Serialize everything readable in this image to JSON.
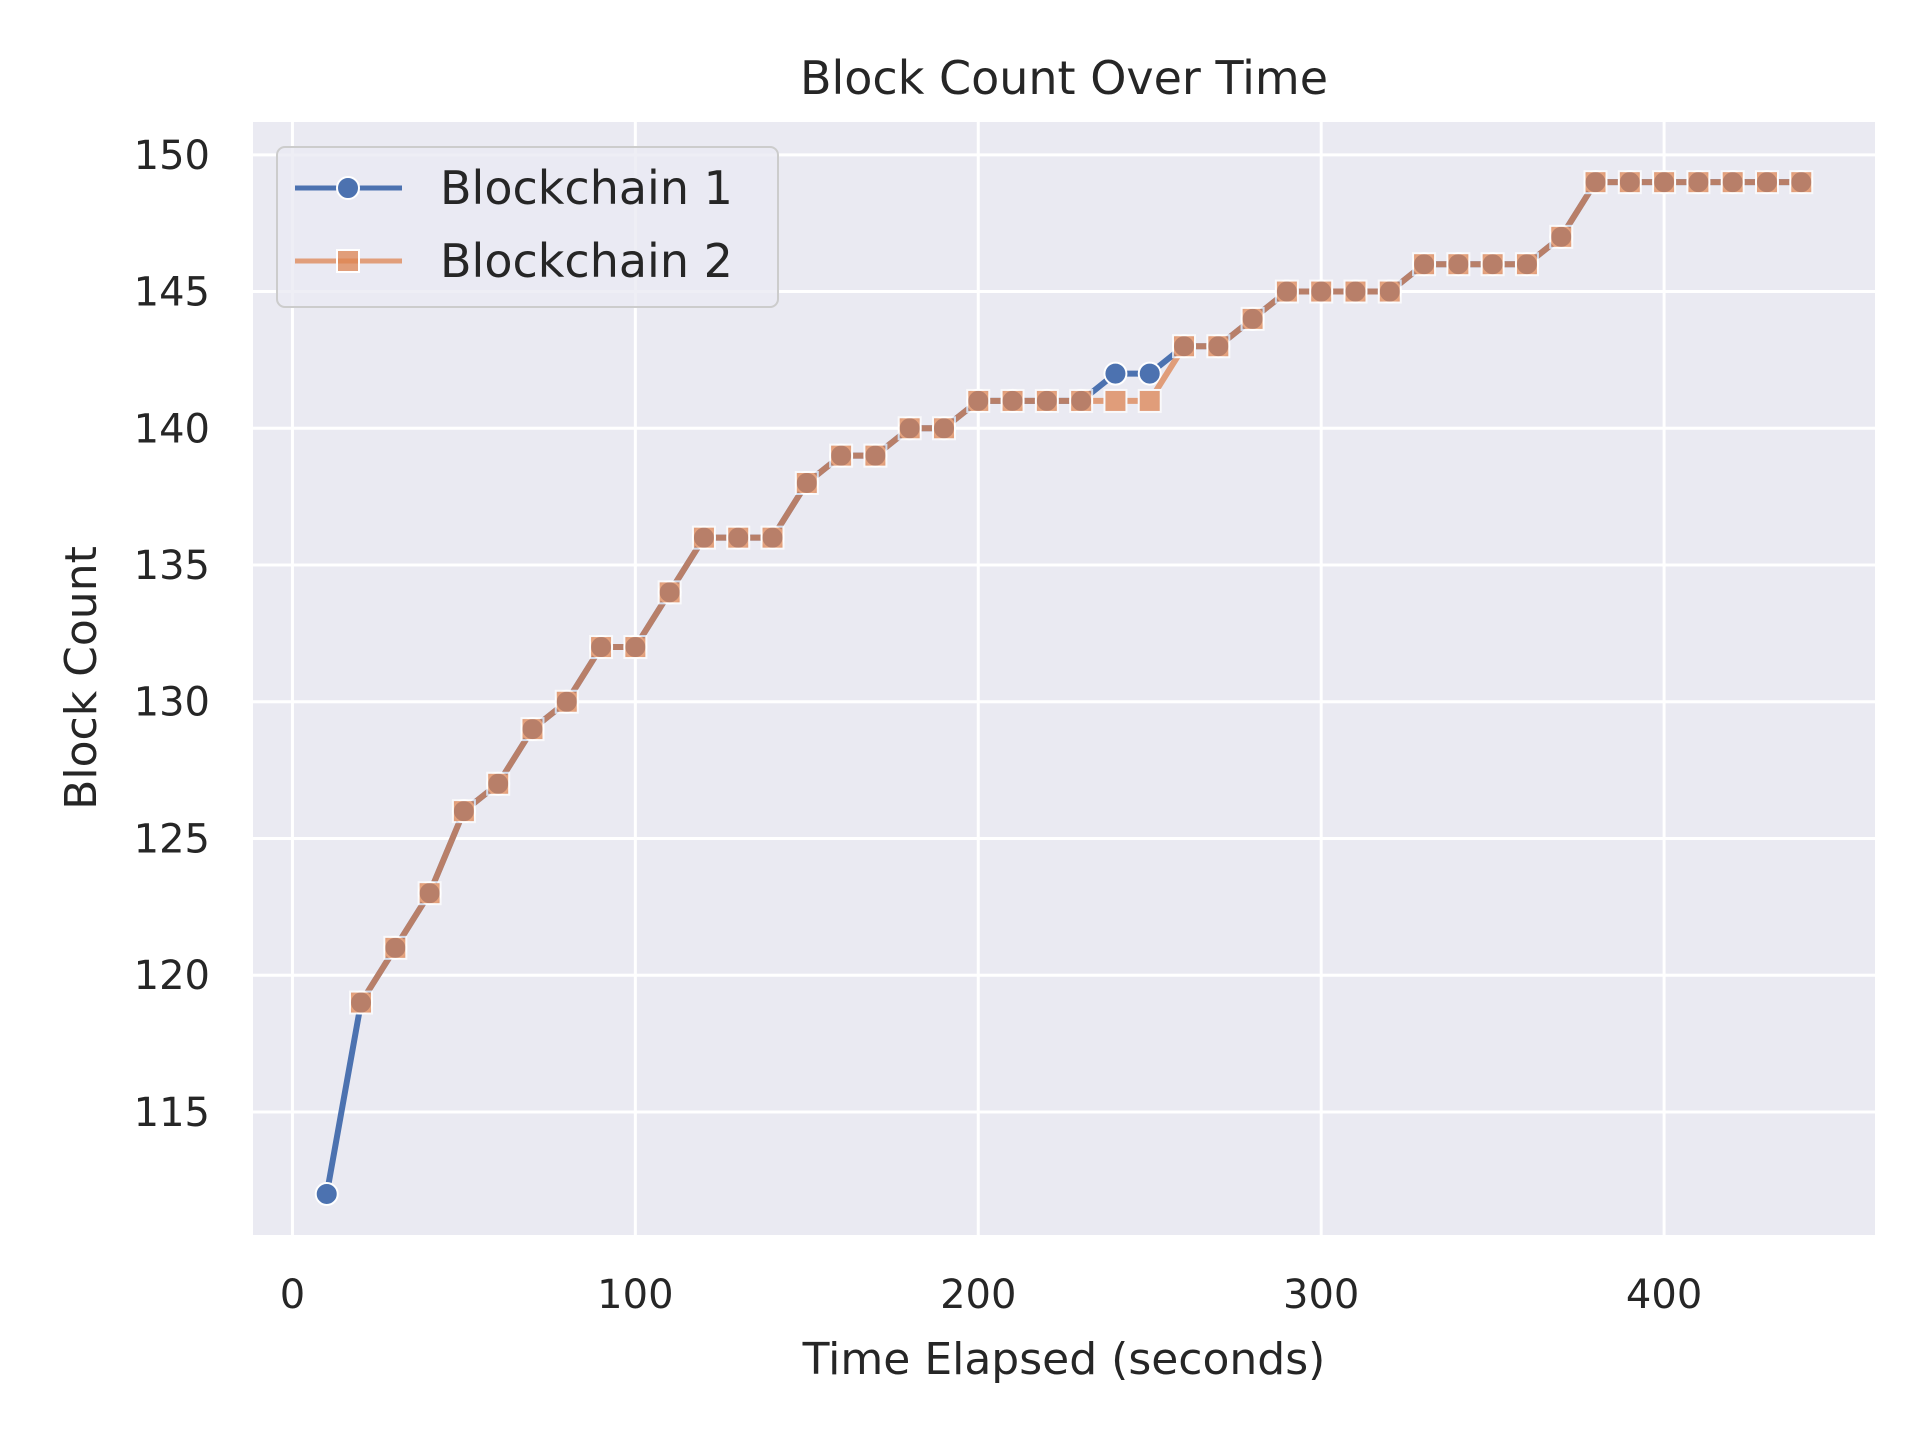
{
  "chart_data": {
    "type": "line",
    "title": "Block Count Over Time",
    "xlabel": "Time Elapsed (seconds)",
    "ylabel": "Block Count",
    "xlim": [
      -11.5,
      461.5
    ],
    "ylim": [
      110.5,
      151.2
    ],
    "xticks": [
      0,
      100,
      200,
      300,
      400
    ],
    "yticks": [
      115,
      120,
      125,
      130,
      135,
      140,
      145,
      150
    ],
    "grid": true,
    "legend_position": "top-left",
    "x": [
      10,
      20,
      30,
      40,
      50,
      60,
      70,
      80,
      90,
      100,
      110,
      120,
      130,
      140,
      150,
      160,
      170,
      180,
      190,
      200,
      210,
      220,
      230,
      240,
      250,
      260,
      270,
      280,
      290,
      300,
      310,
      320,
      330,
      340,
      350,
      360,
      370,
      380,
      390,
      400,
      410,
      420,
      430,
      440
    ],
    "series": [
      {
        "name": "Blockchain 1",
        "color": "#4c72b0",
        "marker": "circle",
        "values": [
          112,
          119,
          121,
          123,
          126,
          127,
          129,
          130,
          132,
          132,
          134,
          136,
          136,
          136,
          138,
          139,
          139,
          140,
          140,
          141,
          141,
          141,
          141,
          142,
          142,
          143,
          143,
          144,
          145,
          145,
          145,
          145,
          146,
          146,
          146,
          146,
          147,
          149,
          149,
          149,
          149,
          149,
          149,
          149
        ]
      },
      {
        "name": "Blockchain 2",
        "color": "#dd8452",
        "marker": "square",
        "values": [
          null,
          119,
          121,
          123,
          126,
          127,
          129,
          130,
          132,
          132,
          134,
          136,
          136,
          136,
          138,
          139,
          139,
          140,
          140,
          141,
          141,
          141,
          141,
          141,
          141,
          143,
          143,
          144,
          145,
          145,
          145,
          145,
          146,
          146,
          146,
          146,
          147,
          149,
          149,
          149,
          149,
          149,
          149,
          149
        ]
      }
    ]
  }
}
